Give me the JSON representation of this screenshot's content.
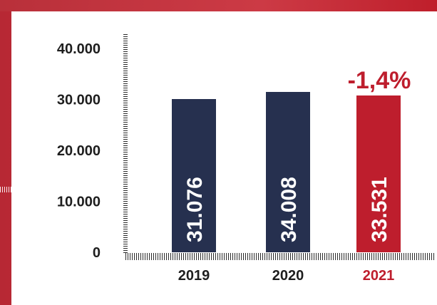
{
  "chart_data": {
    "type": "bar",
    "categories": [
      "2019",
      "2020",
      "2021"
    ],
    "values": [
      31076,
      34008,
      33531
    ],
    "value_labels": [
      "31.076",
      "34.008",
      "33.531"
    ],
    "y_ticks": [
      {
        "value": 0,
        "label": "0"
      },
      {
        "value": 10000,
        "label": "10.000"
      },
      {
        "value": 20000,
        "label": "20.000"
      },
      {
        "value": 30000,
        "label": "30.000"
      },
      {
        "value": 40000,
        "label": "40.000"
      }
    ],
    "ylim": [
      0,
      40000
    ],
    "annotation": "-1,4%",
    "colors": {
      "default_bar": "#26304f",
      "highlight_bar": "#be1e2d",
      "highlight_text": "#be1e2d",
      "axis_text": "#1e1e1e",
      "bar_label": "#ffffff",
      "background": "#c8303b"
    },
    "highlight_index": 2,
    "grid": false
  }
}
